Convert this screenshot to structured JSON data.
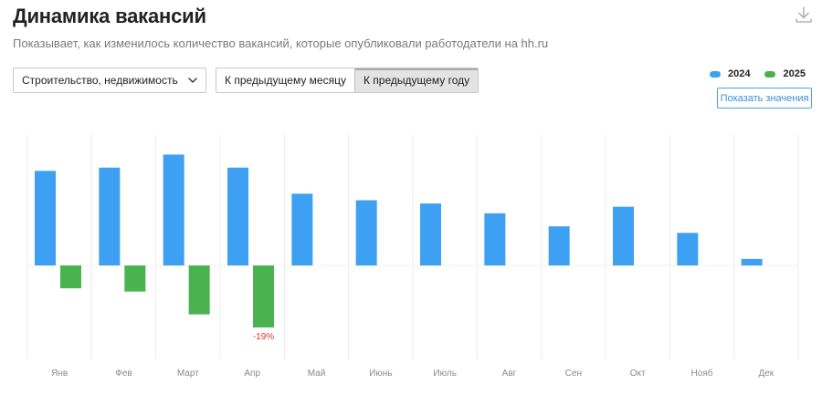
{
  "header": {
    "title": "Динамика вакансий",
    "subtitle": "Показывает, как изменилось количество вакансий, которые опубликовали работодатели на hh.ru",
    "download_icon": "download-icon"
  },
  "filters": {
    "industry_select": {
      "value": "Строительство, недвижимость",
      "icon": "chevron-down-icon"
    },
    "compare": {
      "options": [
        "К предыдущему месяцу",
        "К предыдущему году"
      ],
      "selected": 1
    }
  },
  "show_values_label": "Показать значения",
  "colors": {
    "2024": "#3ea0f2",
    "2025": "#4ab34f",
    "label_negative": "#e2362b",
    "grid": "#ececec"
  },
  "chart_data": {
    "type": "bar",
    "categories": [
      "Янв",
      "Фев",
      "Март",
      "Апр",
      "Май",
      "Июнь",
      "Июль",
      "Авг",
      "Сен",
      "Окт",
      "Нояб",
      "Дек"
    ],
    "series": [
      {
        "name": "2024",
        "values": [
          29,
          30,
          34,
          30,
          22,
          20,
          19,
          16,
          12,
          18,
          10,
          2
        ]
      },
      {
        "name": "2025",
        "values": [
          -7,
          -8,
          -15,
          -19,
          null,
          null,
          null,
          null,
          null,
          null,
          null,
          null
        ]
      }
    ],
    "data_labels": [
      {
        "series": "2025",
        "category": "Апр",
        "text": "-19%"
      }
    ],
    "legend": {
      "position": "top-right",
      "entries": [
        "2024",
        "2025"
      ]
    },
    "ylim": [
      -30,
      40
    ],
    "grid": {
      "vertical": true,
      "horizontal": false
    }
  }
}
